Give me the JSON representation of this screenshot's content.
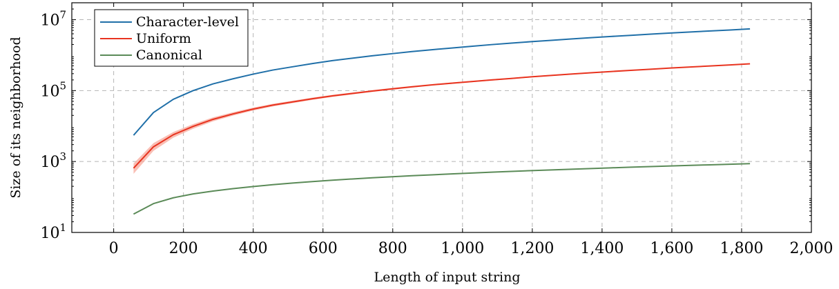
{
  "chart_data": {
    "type": "line",
    "xlabel": "Length of input string",
    "ylabel": "Size of its neighborhood",
    "xlim": [
      -120,
      2000
    ],
    "ylim": [
      10,
      30000000
    ],
    "yscale": "log",
    "grid": true,
    "legend_position": "top-left",
    "x_ticks": [
      0,
      200,
      400,
      600,
      800,
      1000,
      1200,
      1400,
      1600,
      1800,
      2000
    ],
    "x_tick_labels": [
      "0",
      "200",
      "400",
      "600",
      "800",
      "1,000",
      "1,200",
      "1,400",
      "1,600",
      "1,800",
      "2,000"
    ],
    "y_ticks": [
      {
        "value": 10,
        "base": "10",
        "exp": "1"
      },
      {
        "value": 1000,
        "base": "10",
        "exp": "3"
      },
      {
        "value": 100000,
        "base": "10",
        "exp": "5"
      },
      {
        "value": 10000000,
        "base": "10",
        "exp": "7"
      }
    ],
    "series": [
      {
        "name": "Character-level",
        "color": "#1f6fa8",
        "x": [
          57,
          114,
          171,
          228,
          285,
          342,
          399,
          456,
          513,
          570,
          627,
          684,
          741,
          798,
          855,
          912,
          969,
          1026,
          1083,
          1140,
          1197,
          1254,
          1311,
          1368,
          1425,
          1482,
          1539,
          1596,
          1653,
          1710,
          1767,
          1824
        ],
        "y": [
          5500,
          24000,
          57000,
          100000,
          155000,
          215000,
          290000,
          380000,
          470000,
          580000,
          700000,
          820000,
          960000,
          1100000,
          1260000,
          1420000,
          1590000,
          1780000,
          1980000,
          2180000,
          2400000,
          2620000,
          2860000,
          3100000,
          3360000,
          3620000,
          3900000,
          4200000,
          4500000,
          4800000,
          5100000,
          5500000
        ]
      },
      {
        "name": "Uniform",
        "color": "#e8331f",
        "band_color": "#f7a99c",
        "x": [
          57,
          114,
          171,
          228,
          285,
          342,
          399,
          456,
          513,
          570,
          627,
          684,
          741,
          798,
          855,
          912,
          969,
          1026,
          1083,
          1140,
          1197,
          1254,
          1311,
          1368,
          1425,
          1482,
          1539,
          1596,
          1653,
          1710,
          1767,
          1824
        ],
        "y": [
          650,
          2600,
          5700,
          9800,
          15500,
          22000,
          30000,
          39000,
          48000,
          59000,
          71000,
          83000,
          97000,
          112000,
          128000,
          145000,
          162000,
          180000,
          200000,
          220000,
          245000,
          268000,
          292000,
          318000,
          345000,
          372000,
          400000,
          432000,
          462000,
          495000,
          530000,
          570000
        ],
        "y_low": [
          450,
          2000,
          4700,
          8400,
          13600,
          19700,
          27200,
          35700,
          44300,
          54800,
          66300,
          77900,
          91300,
          105700,
          121200,
          137700,
          154300,
          171900,
          191500,
          211200,
          235600,
          258300,
          281900,
          307500,
          334000,
          360600,
          388200,
          419800,
          449500,
          482100,
          517000,
          556500
        ],
        "y_high": [
          880,
          3300,
          6800,
          11400,
          17600,
          24500,
          33000,
          42500,
          51900,
          63500,
          76000,
          88400,
          103000,
          118500,
          135000,
          152500,
          170000,
          188500,
          208800,
          229000,
          254500,
          278000,
          302500,
          328800,
          356500,
          383700,
          412000,
          444500,
          474800,
          508200,
          543300,
          583900
        ]
      },
      {
        "name": "Canonical",
        "color": "#5a8a57",
        "x": [
          57,
          114,
          171,
          228,
          285,
          342,
          399,
          456,
          513,
          570,
          627,
          684,
          741,
          798,
          855,
          912,
          969,
          1026,
          1083,
          1140,
          1197,
          1254,
          1311,
          1368,
          1425,
          1482,
          1539,
          1596,
          1653,
          1710,
          1767,
          1824
        ],
        "y": [
          33,
          65,
          95,
          122,
          147,
          172,
          197,
          222,
          247,
          272,
          297,
          322,
          347,
          372,
          397,
          422,
          448,
          474,
          500,
          526,
          553,
          580,
          607,
          635,
          663,
          691,
          720,
          749,
          778,
          808,
          838,
          870
        ]
      }
    ]
  }
}
